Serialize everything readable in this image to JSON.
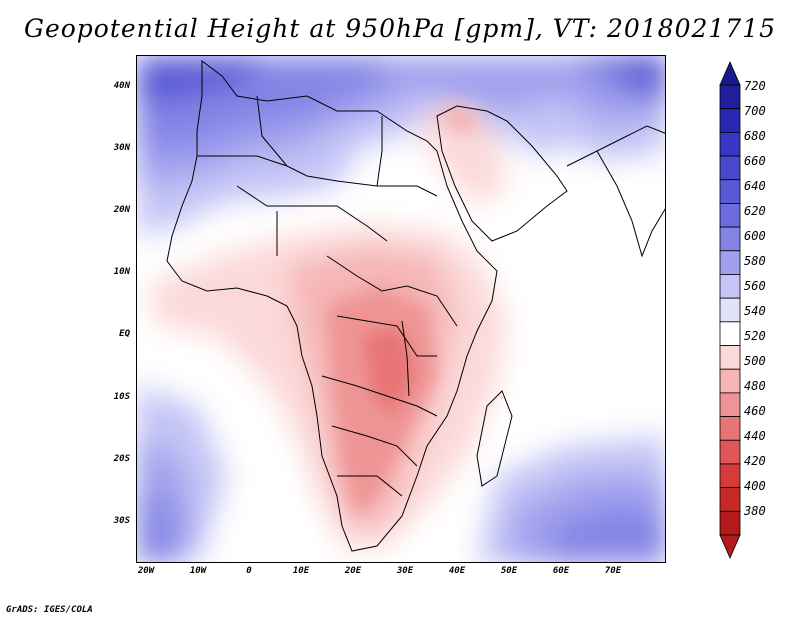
{
  "title": "Geopotential Height at 950hPa [gpm], VT: 2018021715",
  "credit": "GrADS: IGES/COLA",
  "map": {
    "variable": "Geopotential Height",
    "level": "950hPa",
    "units": "gpm",
    "valid_time": "2018021715",
    "lat_labels": [
      "40N",
      "30N",
      "20N",
      "10N",
      "EQ",
      "10S",
      "20S",
      "30S"
    ],
    "lon_labels": [
      "20W",
      "10W",
      "0",
      "10E",
      "20E",
      "30E",
      "40E",
      "50E",
      "60E",
      "70E"
    ]
  },
  "colorbar": {
    "labels": [
      "720",
      "700",
      "680",
      "660",
      "640",
      "620",
      "600",
      "580",
      "560",
      "540",
      "520",
      "500",
      "480",
      "460",
      "440",
      "420",
      "400",
      "380"
    ],
    "colors": [
      "#1f1f9e",
      "#2828b4",
      "#3737c4",
      "#4848ce",
      "#5a5ad6",
      "#6c6cde",
      "#8484e6",
      "#a0a0ee",
      "#c4c4f6",
      "#e2e2fb",
      "#ffffff",
      "#fcd9d9",
      "#f5b5b5",
      "#ef9494",
      "#e87575",
      "#e05757",
      "#d63b3b",
      "#c92828",
      "#b41a1a"
    ],
    "top_arrow_color": "#1a1a8c",
    "bottom_arrow_color": "#b41a1a"
  }
}
